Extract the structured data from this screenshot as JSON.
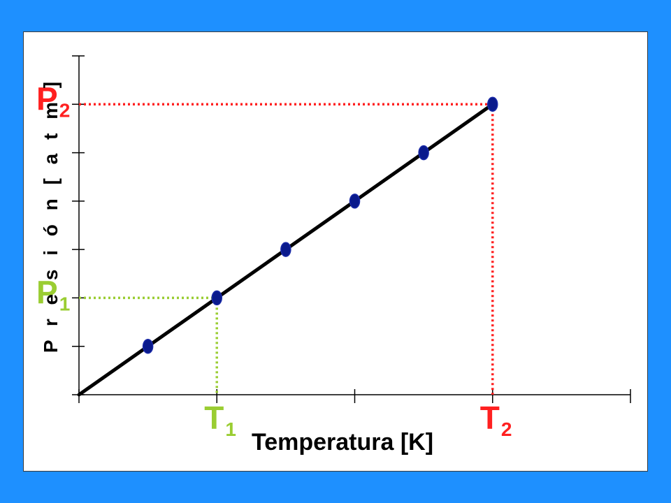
{
  "colors": {
    "background": "#1E90FF",
    "panel": "#FFFFFF",
    "line": "#000000",
    "point": "#0A1A8C",
    "red": "#FF2020",
    "green": "#9ACD32"
  },
  "chart_data": {
    "type": "line",
    "xlabel": "Temperatura [K]",
    "ylabel": "P r e s i ó n   [ a t m ]",
    "xlim": [
      0,
      4
    ],
    "ylim": [
      0,
      7
    ],
    "x_ticks": [
      0,
      1,
      2,
      3,
      4
    ],
    "y_ticks": [
      0,
      1,
      2,
      3,
      4,
      5,
      6,
      7
    ],
    "grid": false,
    "series": [
      {
        "line": [
          [
            0,
            0
          ],
          [
            3,
            6
          ]
        ],
        "points": [
          {
            "x": 0.5,
            "y": 1
          },
          {
            "x": 1.0,
            "y": 2
          },
          {
            "x": 1.5,
            "y": 3
          },
          {
            "x": 2.0,
            "y": 4
          },
          {
            "x": 2.5,
            "y": 5
          },
          {
            "x": 3.0,
            "y": 6
          }
        ]
      }
    ],
    "annotations": [
      {
        "x": 1,
        "y": 2,
        "x_label": {
          "main": "T",
          "sub": "1"
        },
        "y_label": {
          "main": "P",
          "sub": "1"
        },
        "color": "green"
      },
      {
        "x": 3,
        "y": 6,
        "x_label": {
          "main": "T",
          "sub": "2"
        },
        "y_label": {
          "main": "P",
          "sub": "2"
        },
        "color": "red"
      }
    ]
  }
}
